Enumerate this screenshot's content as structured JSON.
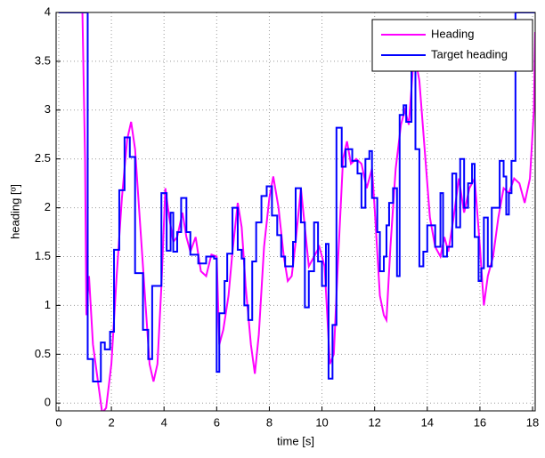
{
  "chart_data": {
    "type": "line",
    "xlabel": "time [s]",
    "ylabel": "heading [º]",
    "xlim": [
      -0.1,
      18.1
    ],
    "ylim": [
      -0.08,
      4
    ],
    "xticks": [
      0,
      2,
      4,
      6,
      8,
      10,
      12,
      14,
      16,
      18
    ],
    "yticks": [
      0,
      0.5,
      1,
      1.5,
      2,
      2.5,
      3,
      3.5,
      4
    ],
    "grid": true,
    "legend": "upper right",
    "series": [
      {
        "name": "Heading",
        "color": "#ff00ff",
        "drawstyle": "default",
        "x": [
          0,
          0.9,
          1.0,
          1.05,
          1.15,
          1.3,
          1.5,
          1.65,
          1.8,
          2.0,
          2.2,
          2.4,
          2.6,
          2.75,
          2.9,
          3.1,
          3.3,
          3.45,
          3.6,
          3.75,
          3.9,
          4.05,
          4.2,
          4.35,
          4.5,
          4.7,
          4.85,
          5.0,
          5.2,
          5.4,
          5.6,
          5.8,
          6.0,
          6.1,
          6.25,
          6.45,
          6.6,
          6.8,
          6.95,
          7.1,
          7.3,
          7.45,
          7.6,
          7.8,
          8.0,
          8.15,
          8.35,
          8.55,
          8.7,
          8.85,
          9.0,
          9.2,
          9.35,
          9.5,
          9.7,
          9.9,
          10.1,
          10.3,
          10.45,
          10.6,
          10.8,
          10.95,
          11.1,
          11.3,
          11.5,
          11.7,
          11.9,
          12.0,
          12.2,
          12.35,
          12.45,
          12.6,
          12.8,
          13.0,
          13.15,
          13.3,
          13.5,
          13.7,
          13.9,
          14.1,
          14.3,
          14.5,
          14.65,
          14.8,
          15.0,
          15.2,
          15.4,
          15.6,
          15.8,
          16.0,
          16.15,
          16.3,
          16.5,
          16.7,
          16.9,
          17.1,
          17.3,
          17.5,
          17.7,
          17.9,
          18.05,
          18.1
        ],
        "values": [
          4,
          4,
          2.5,
          0.9,
          1.3,
          0.6,
          0.2,
          -0.1,
          -0.05,
          0.4,
          1.3,
          2.1,
          2.7,
          2.88,
          2.6,
          1.8,
          1.0,
          0.4,
          0.22,
          0.4,
          1.2,
          2.2,
          1.9,
          1.65,
          1.7,
          1.95,
          1.7,
          1.55,
          1.7,
          1.35,
          1.3,
          1.52,
          1.5,
          0.6,
          0.75,
          1.1,
          1.55,
          2.05,
          1.8,
          1.2,
          0.6,
          0.3,
          0.7,
          1.6,
          2.1,
          2.32,
          2.0,
          1.5,
          1.25,
          1.3,
          1.65,
          2.2,
          1.8,
          1.4,
          1.5,
          1.6,
          1.4,
          0.4,
          0.5,
          1.4,
          2.5,
          2.68,
          2.45,
          2.5,
          2.45,
          2.2,
          2.4,
          2.0,
          1.1,
          0.9,
          0.85,
          1.6,
          2.4,
          2.85,
          3.0,
          2.85,
          3.6,
          3.3,
          2.6,
          1.9,
          1.6,
          1.5,
          1.7,
          1.55,
          1.9,
          2.3,
          1.95,
          2.2,
          2.3,
          1.6,
          1.0,
          1.3,
          1.5,
          1.9,
          2.2,
          2.15,
          2.3,
          2.25,
          2.05,
          2.3,
          3.0,
          3.8
        ]
      },
      {
        "name": "Target heading",
        "color": "#0000ff",
        "drawstyle": "steps-post",
        "x": [
          0,
          1.1,
          1.3,
          1.6,
          1.75,
          1.95,
          2.1,
          2.3,
          2.5,
          2.7,
          2.9,
          3.2,
          3.4,
          3.55,
          3.9,
          4.1,
          4.25,
          4.35,
          4.5,
          4.65,
          4.85,
          5.0,
          5.3,
          5.6,
          5.9,
          6.0,
          6.1,
          6.3,
          6.4,
          6.6,
          6.8,
          6.95,
          7.05,
          7.2,
          7.35,
          7.5,
          7.7,
          7.9,
          8.1,
          8.3,
          8.45,
          8.6,
          8.9,
          9.0,
          9.2,
          9.35,
          9.5,
          9.7,
          9.85,
          10.0,
          10.15,
          10.25,
          10.4,
          10.55,
          10.75,
          10.9,
          11.15,
          11.35,
          11.5,
          11.65,
          11.8,
          11.9,
          12.1,
          12.2,
          12.35,
          12.45,
          12.55,
          12.7,
          12.85,
          12.95,
          13.1,
          13.2,
          13.35,
          13.4,
          13.55,
          13.7,
          13.85,
          14.0,
          14.3,
          14.5,
          14.6,
          14.75,
          14.95,
          15.1,
          15.25,
          15.4,
          15.55,
          15.7,
          15.8,
          15.95,
          16.05,
          16.15,
          16.3,
          16.45,
          16.75,
          16.9,
          17.0,
          17.1,
          17.2,
          17.35,
          18.1
        ],
        "values": [
          4,
          0.45,
          0.22,
          0.62,
          0.55,
          0.73,
          1.57,
          2.18,
          2.72,
          2.52,
          1.33,
          0.75,
          0.45,
          1.2,
          2.15,
          1.56,
          1.95,
          1.55,
          1.75,
          2.1,
          1.75,
          1.52,
          1.43,
          1.5,
          1.48,
          0.32,
          0.92,
          1.25,
          1.53,
          2.0,
          1.57,
          1.48,
          1.0,
          0.85,
          1.45,
          1.85,
          2.12,
          2.22,
          1.92,
          1.72,
          1.5,
          1.4,
          1.65,
          2.2,
          1.85,
          0.98,
          1.35,
          1.85,
          1.45,
          1.2,
          1.63,
          0.25,
          0.8,
          2.82,
          2.42,
          2.6,
          2.48,
          2.35,
          2.0,
          2.5,
          2.58,
          2.1,
          1.75,
          1.35,
          1.5,
          1.82,
          2.05,
          2.2,
          1.3,
          2.95,
          3.05,
          2.88,
          2.88,
          3.45,
          2.6,
          1.4,
          1.55,
          1.82,
          1.6,
          2.15,
          1.5,
          1.6,
          2.35,
          1.8,
          2.5,
          2.0,
          2.25,
          2.45,
          1.7,
          1.25,
          1.38,
          1.9,
          1.4,
          2.0,
          2.48,
          2.32,
          1.93,
          2.15,
          2.48,
          4.0,
          4.0
        ]
      }
    ]
  }
}
